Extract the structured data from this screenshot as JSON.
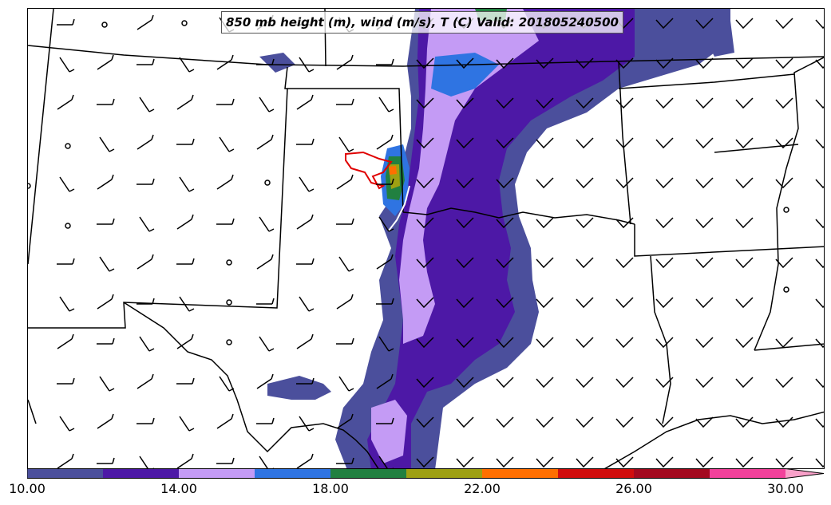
{
  "title": "850 mb height (m), wind (m/s), T (C) Valid: 201805240500",
  "colorbar": {
    "colors": [
      "#4b4f9c",
      "#4d18a6",
      "#c49bf5",
      "#2f74e2",
      "#218040",
      "#9ea012",
      "#ff6f00",
      "#d10d0d",
      "#a3091f",
      "#f2419b",
      "#f9a0c9"
    ],
    "tick_labels": [
      "10.00",
      "14.00",
      "18.00",
      "22.00",
      "26.00",
      "30.00"
    ]
  },
  "map": {
    "boundary_color": "#000000",
    "contour_color": "#e00000",
    "barb_color": "#000000"
  }
}
